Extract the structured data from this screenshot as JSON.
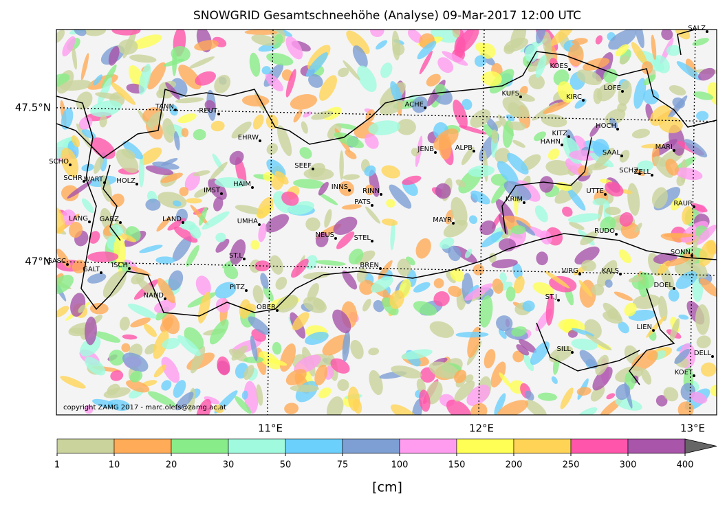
{
  "title": "SNOWGRID Gesamtschneehöhe (Analyse) 09-Mar-2017 12:00 UTC",
  "map": {
    "lonlim": [
      9.987,
      13.114
    ],
    "latlim": [
      46.502,
      47.754
    ],
    "lonticks": [
      {
        "value": 11,
        "label": "11°E"
      },
      {
        "value": 12,
        "label": "12°E"
      },
      {
        "value": 13,
        "label": "13°E"
      }
    ],
    "latticks": [
      {
        "value": 47.5,
        "label": "47.5°N"
      },
      {
        "value": 47,
        "label": "47°N"
      }
    ],
    "stations": [
      "SALZ",
      "KOES",
      "LOFE",
      "KUFS",
      "KIRC",
      "ACHE",
      "TANN",
      "REUT",
      "HOCH",
      "KITZ",
      "HAHN",
      "EHRW",
      "JENB",
      "ALPB",
      "MARI",
      "SAAL",
      "SCHO",
      "SEEF",
      "SCHZ",
      "ZELL",
      "SCHR",
      "WART",
      "HOLZ",
      "HAIM",
      "INNS",
      "RINN",
      "IMST",
      "UTTE",
      "PATS",
      "KRIM",
      "RAUR",
      "LANG",
      "GARZ",
      "LAND",
      "UMHA",
      "MAYR",
      "RUDO",
      "NEUS",
      "STEL",
      "ST.L",
      "SONN",
      "GASC",
      "ISCH",
      "GALT",
      "BREN",
      "VIRG",
      "KALS",
      "DOEL",
      "NAUD",
      "PITZ",
      "ST.J",
      "OBER",
      "LIEN",
      "SILL",
      "DELL",
      "KOET"
    ],
    "copyright": "copyright ZAMG 2017 - marc.olefs@zamg.ac.at"
  },
  "colorbar": {
    "bounds": [
      1,
      10,
      20,
      30,
      50,
      75,
      100,
      150,
      200,
      250,
      300,
      400
    ],
    "colors": [
      "#c9d39b",
      "#ffab57",
      "#88ec88",
      "#a0fbde",
      "#6cd0fd",
      "#7d9fd4",
      "#ff9cf0",
      "#ffff55",
      "#ffd456",
      "#ff55aa",
      "#a855aa"
    ],
    "extend_color": "#666666",
    "label": "[cm]"
  }
}
